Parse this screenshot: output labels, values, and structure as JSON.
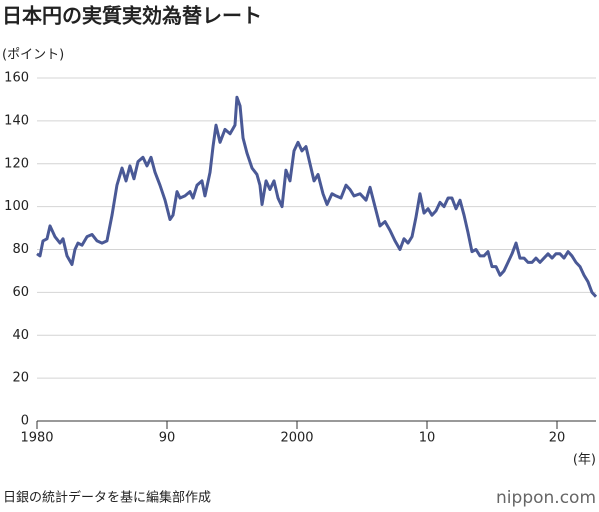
{
  "chart_data": {
    "type": "line",
    "title": "日本円の実質実効為替レート",
    "ylabel": "(ポイント)",
    "xlabel": "(年)",
    "source": "日銀の統計データを基に編集部作成",
    "brand": "nippon.com",
    "xlim": [
      1980,
      2023
    ],
    "ylim": [
      0,
      160
    ],
    "yticks": [
      0,
      20,
      40,
      60,
      80,
      100,
      120,
      140,
      160
    ],
    "xticks": [
      {
        "value": 1980,
        "label": "1980"
      },
      {
        "value": 1990,
        "label": "90"
      },
      {
        "value": 2000,
        "label": "2000"
      },
      {
        "value": 2010,
        "label": "10"
      },
      {
        "value": 2020,
        "label": "20"
      }
    ],
    "grid": true,
    "series": [
      {
        "color": "#4a5996",
        "x": [
          1980.0,
          1980.23,
          1980.46,
          1980.77,
          1981.0,
          1981.38,
          1981.77,
          1982.0,
          1982.31,
          1982.69,
          1982.92,
          1983.15,
          1983.46,
          1983.85,
          1984.23,
          1984.62,
          1985.0,
          1985.38,
          1985.77,
          1986.15,
          1986.54,
          1986.85,
          1987.15,
          1987.46,
          1987.77,
          1988.15,
          1988.46,
          1988.77,
          1989.08,
          1989.46,
          1989.85,
          1990.23,
          1990.46,
          1990.77,
          1991.0,
          1991.38,
          1991.77,
          1992.0,
          1992.31,
          1992.69,
          1992.92,
          1993.31,
          1993.54,
          1993.77,
          1994.08,
          1994.46,
          1994.85,
          1995.23,
          1995.38,
          1995.62,
          1995.85,
          1996.15,
          1996.54,
          1996.92,
          1997.15,
          1997.31,
          1997.62,
          1997.92,
          1998.23,
          1998.54,
          1998.85,
          1999.15,
          1999.46,
          1999.77,
          2000.08,
          2000.38,
          2000.69,
          2001.0,
          2001.31,
          2001.62,
          2002.0,
          2002.31,
          2002.69,
          2003.0,
          2003.38,
          2003.77,
          2004.08,
          2004.38,
          2004.85,
          2005.31,
          2005.62,
          2006.0,
          2006.38,
          2006.77,
          2007.15,
          2007.54,
          2007.92,
          2008.23,
          2008.54,
          2008.85,
          2009.15,
          2009.46,
          2009.77,
          2010.08,
          2010.38,
          2010.69,
          2011.0,
          2011.31,
          2011.62,
          2011.92,
          2012.23,
          2012.54,
          2012.85,
          2013.15,
          2013.46,
          2013.77,
          2014.08,
          2014.38,
          2014.69,
          2015.0,
          2015.31,
          2015.62,
          2015.92,
          2016.23,
          2016.54,
          2016.85,
          2017.15,
          2017.46,
          2017.77,
          2018.08,
          2018.38,
          2018.69,
          2019.0,
          2019.31,
          2019.62,
          2019.92,
          2020.23,
          2020.54,
          2020.85,
          2021.15,
          2021.46,
          2021.77,
          2022.08,
          2022.38,
          2022.69,
          2023.0
        ],
        "values": [
          78,
          77,
          84,
          85,
          91,
          86,
          83,
          85,
          77,
          73,
          80,
          83,
          82,
          86,
          87,
          84,
          83,
          84,
          96,
          110,
          118,
          112,
          119,
          113,
          121,
          123,
          119,
          123,
          116,
          110,
          103,
          94,
          96,
          107,
          104,
          105,
          107,
          104,
          110,
          112,
          105,
          116,
          128,
          138,
          130,
          136,
          134,
          138,
          151,
          147,
          132,
          125,
          118,
          115,
          110,
          101,
          112,
          108,
          112,
          104,
          100,
          117,
          112,
          126,
          130,
          126,
          128,
          120,
          112,
          115,
          106,
          101,
          106,
          105,
          104,
          110,
          108,
          105,
          106,
          103,
          109,
          100,
          91,
          93,
          89,
          84,
          80,
          85,
          83,
          86,
          95,
          106,
          97,
          99,
          96,
          98,
          102,
          100,
          104,
          104,
          99,
          103,
          96,
          88,
          79,
          80,
          77,
          77,
          79,
          72,
          72,
          68,
          70,
          74,
          78,
          83,
          76,
          76,
          74,
          74,
          76,
          74,
          76,
          78,
          76,
          78,
          78,
          76,
          79,
          77,
          74,
          72,
          68,
          65,
          60,
          58
        ]
      }
    ]
  }
}
